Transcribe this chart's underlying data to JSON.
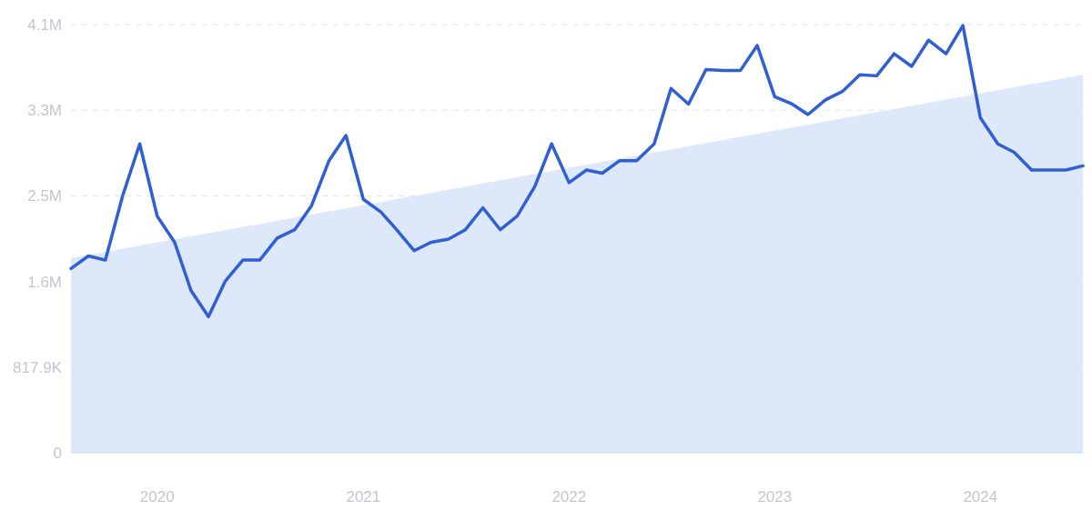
{
  "chart_data": {
    "type": "line",
    "x": [
      "2019-08",
      "2019-09",
      "2019-10",
      "2019-11",
      "2019-12",
      "2020-01",
      "2020-02",
      "2020-03",
      "2020-04",
      "2020-05",
      "2020-06",
      "2020-07",
      "2020-08",
      "2020-09",
      "2020-10",
      "2020-11",
      "2020-12",
      "2021-01",
      "2021-02",
      "2021-03",
      "2021-04",
      "2021-05",
      "2021-06",
      "2021-07",
      "2021-08",
      "2021-09",
      "2021-10",
      "2021-11",
      "2021-12",
      "2022-01",
      "2022-02",
      "2022-03",
      "2022-04",
      "2022-05",
      "2022-06",
      "2022-07",
      "2022-08",
      "2022-09",
      "2022-10",
      "2022-11",
      "2022-12",
      "2023-01",
      "2023-02",
      "2023-03",
      "2023-04",
      "2023-05",
      "2023-06",
      "2023-07",
      "2023-08",
      "2023-09",
      "2023-10",
      "2023-11",
      "2023-12",
      "2024-01",
      "2024-02",
      "2024-03",
      "2024-04",
      "2024-05",
      "2024-06",
      "2024-07"
    ],
    "series": [
      {
        "type": "area",
        "color": "#dde9fb",
        "x": [
          "2019-08",
          "2024-07"
        ],
        "values": [
          1860000,
          3610000
        ]
      },
      {
        "color": "#2f5fd3",
        "values": [
          1760000,
          1880000,
          1840000,
          2460000,
          2950000,
          2260000,
          2010000,
          1550000,
          1300000,
          1640000,
          1840000,
          1840000,
          2050000,
          2130000,
          2360000,
          2790000,
          3030000,
          2420000,
          2300000,
          2130000,
          1930000,
          2010000,
          2040000,
          2130000,
          2340000,
          2130000,
          2260000,
          2540000,
          2950000,
          2580000,
          2700000,
          2670000,
          2790000,
          2790000,
          2950000,
          3480000,
          3330000,
          3660000,
          3650000,
          3650000,
          3890000,
          3400000,
          3330000,
          3230000,
          3370000,
          3450000,
          3610000,
          3600000,
          3810000,
          3690000,
          3940000,
          3810000,
          4080000,
          3200000,
          2950000,
          2870000,
          2700000,
          2700000,
          2700000,
          2740000
        ]
      }
    ],
    "xlim": [
      "2019-08",
      "2024-07"
    ],
    "xticks": [
      "2020",
      "2021",
      "2022",
      "2023",
      "2024"
    ],
    "ylim": [
      0,
      4089500
    ],
    "yticks": [
      0,
      {
        "value": 817900,
        "label": "817.9K"
      },
      {
        "value": 1635800,
        "label": "1.6M"
      },
      {
        "value": 2453700,
        "label": "2.5M"
      },
      {
        "value": 3271600,
        "label": "3.3M"
      },
      {
        "value": 4089500,
        "label": "4.1M"
      }
    ],
    "grid": "y",
    "marker": "none",
    "line_style": "solid"
  }
}
